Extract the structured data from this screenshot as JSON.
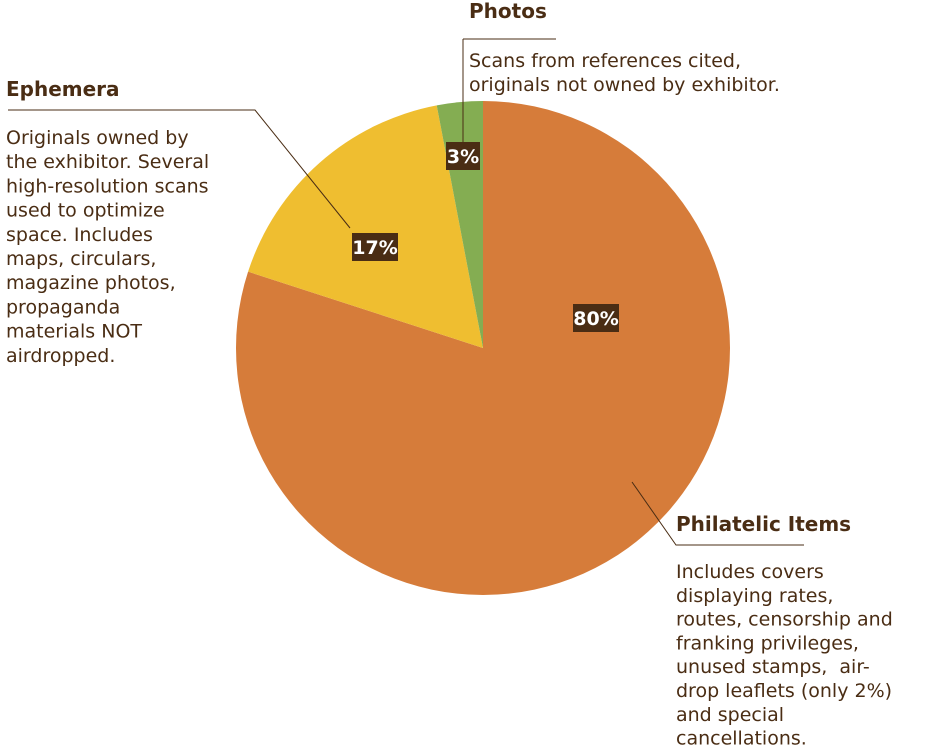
{
  "chart_data": {
    "type": "pie",
    "slices": [
      {
        "name": "Philatelic Items",
        "value": 80,
        "label": "80%",
        "color": "#d67c3a",
        "description": [
          "Includes covers",
          "displaying rates,",
          "routes, censorship and",
          "franking privileges,",
          "unused stamps,  air-",
          "drop leaflets (only 2%)",
          "and special",
          "cancellations."
        ]
      },
      {
        "name": "Ephemera",
        "value": 17,
        "label": "17%",
        "color": "#efbe30",
        "description": [
          "Originals owned by",
          "the exhibitor. Several",
          "high-resolution scans",
          "used to optimize",
          "space. Includes",
          "maps, circulars,",
          "magazine photos,",
          "propaganda",
          "materials NOT",
          "airdropped."
        ]
      },
      {
        "name": "Photos",
        "value": 3,
        "label": "3%",
        "color": "#84ad52",
        "description": [
          "Scans from references cited,",
          "originals not owned by exhibitor."
        ]
      }
    ]
  }
}
